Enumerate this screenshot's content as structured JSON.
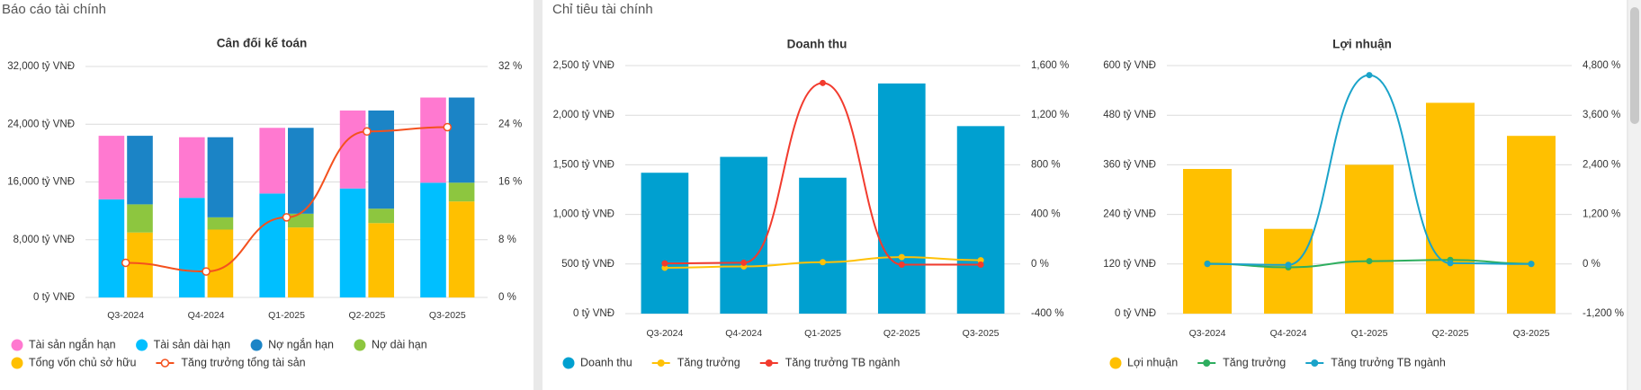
{
  "panels": {
    "left_title": "Báo cáo tài chính",
    "right_title": "Chỉ tiêu tài chính"
  },
  "chart_data": [
    {
      "type": "bar",
      "title": "Cân đối kế toán",
      "categories": [
        "Q3-2024",
        "Q4-2024",
        "Q1-2025",
        "Q2-2025",
        "Q3-2025"
      ],
      "series": [
        {
          "name": "Tài sản ngắn hạn",
          "color": "#ff79d0",
          "stack": 1,
          "values": [
            8800,
            8400,
            9100,
            10800,
            11800
          ]
        },
        {
          "name": "Tài sản dài hạn",
          "color": "#00bfff",
          "stack": 1,
          "values": [
            13600,
            13800,
            14400,
            15100,
            15900
          ]
        },
        {
          "name": "Nợ ngắn hạn",
          "color": "#1b84c6",
          "stack": 2,
          "values": [
            9500,
            11100,
            11900,
            13600,
            11800
          ]
        },
        {
          "name": "Nợ dài hạn",
          "color": "#8dc63f",
          "stack": 2,
          "values": [
            3900,
            1700,
            1900,
            2000,
            2600
          ]
        },
        {
          "name": "Tổng vốn chủ sở hữu",
          "color": "#ffc000",
          "stack": 2,
          "values": [
            9000,
            9400,
            9700,
            10300,
            13300
          ]
        },
        {
          "name": "Tăng trưởng tổng tài sản",
          "color": "#f4511e",
          "type": "line",
          "axis": "y2",
          "marker_fill": "#ffffff",
          "values": [
            4.8,
            3.6,
            11.1,
            23.0,
            23.6
          ]
        }
      ],
      "ylim": [
        0,
        32000
      ],
      "yticks": [
        {
          "value": 0,
          "label": "0 tỷ VNĐ"
        },
        {
          "value": 8000,
          "label": "8,000 tỷ VNĐ"
        },
        {
          "value": 16000,
          "label": "16,000 tỷ VNĐ"
        },
        {
          "value": 24000,
          "label": "24,000 tỷ VNĐ"
        },
        {
          "value": 32000,
          "label": "32,000 tỷ VNĐ"
        }
      ],
      "y2lim": [
        0,
        32
      ],
      "y2ticks": [
        {
          "value": 0,
          "label": "0 %"
        },
        {
          "value": 8,
          "label": "8 %"
        },
        {
          "value": 16,
          "label": "16 %"
        },
        {
          "value": 24,
          "label": "24 %"
        },
        {
          "value": 32,
          "label": "32 %"
        }
      ],
      "grid": true
    },
    {
      "type": "bar",
      "title": "Doanh thu",
      "categories": [
        "Q3-2024",
        "Q4-2024",
        "Q1-2025",
        "Q2-2025",
        "Q3-2025"
      ],
      "series": [
        {
          "name": "Doanh thu",
          "color": "#00a0d0",
          "values": [
            1420,
            1580,
            1370,
            2320,
            1890
          ]
        },
        {
          "name": "Tăng trưởng",
          "color": "#ffc107",
          "type": "line",
          "axis": "y2",
          "values": [
            -30,
            -20,
            15,
            56,
            30
          ]
        },
        {
          "name": "Tăng trưởng TB ngành",
          "color": "#f23b2e",
          "type": "line",
          "axis": "y2",
          "values": [
            5,
            10,
            1460,
            -5,
            -5
          ]
        }
      ],
      "ylim": [
        0,
        2500
      ],
      "yticks": [
        {
          "value": 0,
          "label": "0 tỷ VNĐ"
        },
        {
          "value": 500,
          "label": "500 tỷ VNĐ"
        },
        {
          "value": 1000,
          "label": "1,000 tỷ VNĐ"
        },
        {
          "value": 1500,
          "label": "1,500 tỷ VNĐ"
        },
        {
          "value": 2000,
          "label": "2,000 tỷ VNĐ"
        },
        {
          "value": 2500,
          "label": "2,500 tỷ VNĐ"
        }
      ],
      "y2lim": [
        -400,
        1600
      ],
      "y2ticks": [
        {
          "value": -400,
          "label": "-400 %"
        },
        {
          "value": 0,
          "label": "0 %"
        },
        {
          "value": 400,
          "label": "400 %"
        },
        {
          "value": 800,
          "label": "800 %"
        },
        {
          "value": 1200,
          "label": "1,200 %"
        },
        {
          "value": 1600,
          "label": "1,600 %"
        }
      ],
      "grid": true
    },
    {
      "type": "bar",
      "title": "Lợi nhuận",
      "categories": [
        "Q3-2024",
        "Q4-2024",
        "Q1-2025",
        "Q2-2025",
        "Q3-2025"
      ],
      "series": [
        {
          "name": "Lợi nhuận",
          "color": "#ffc000",
          "values": [
            350,
            205,
            360,
            510,
            430
          ]
        },
        {
          "name": "Tăng trưởng",
          "color": "#2eae5f",
          "type": "line",
          "axis": "y2",
          "values": [
            10,
            -80,
            70,
            100,
            5
          ]
        },
        {
          "name": "Tăng trưởng TB ngành",
          "color": "#1aa3c9",
          "type": "line",
          "axis": "y2",
          "values": [
            0,
            -20,
            4570,
            20,
            0
          ]
        }
      ],
      "ylim": [
        0,
        600
      ],
      "yticks": [
        {
          "value": 0,
          "label": "0 tỷ VNĐ"
        },
        {
          "value": 120,
          "label": "120 tỷ VNĐ"
        },
        {
          "value": 240,
          "label": "240 tỷ VNĐ"
        },
        {
          "value": 360,
          "label": "360 tỷ VNĐ"
        },
        {
          "value": 480,
          "label": "480 tỷ VNĐ"
        },
        {
          "value": 600,
          "label": "600 tỷ VNĐ"
        }
      ],
      "y2lim": [
        -1200,
        4800
      ],
      "y2ticks": [
        {
          "value": -1200,
          "label": "-1,200 %"
        },
        {
          "value": 0,
          "label": "0 %"
        },
        {
          "value": 1200,
          "label": "1,200 %"
        },
        {
          "value": 2400,
          "label": "2,400 %"
        },
        {
          "value": 3600,
          "label": "3,600 %"
        },
        {
          "value": 4800,
          "label": "4,800 %"
        }
      ],
      "grid": true
    }
  ]
}
